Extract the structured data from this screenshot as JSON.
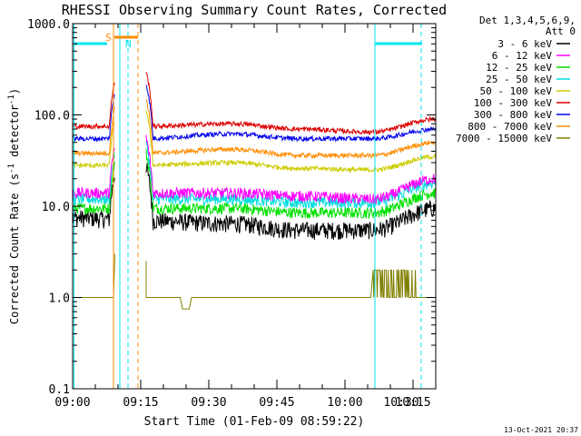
{
  "chart_data": {
    "type": "line",
    "title": "RHESSI Observing Summary Count Rates, Corrected",
    "xlabel": "Start Time (01-Feb-09 08:59:22)",
    "ylabel_main": "Corrected Count Rate (s",
    "ylabel_sup1": "-1",
    "ylabel_mid": " detector",
    "ylabel_sup2": "-1",
    "ylabel_end": ")",
    "yscale": "log",
    "ylim": [
      0.1,
      1000
    ],
    "xlim_minutes": [
      0,
      80
    ],
    "x_ticks": [
      {
        "label": "09:00",
        "minute": 0
      },
      {
        "label": "09:15",
        "minute": 15
      },
      {
        "label": "09:30",
        "minute": 30
      },
      {
        "label": "09:45",
        "minute": 45
      },
      {
        "label": "10:00",
        "minute": 60
      },
      {
        "label": "10:15",
        "minute": 75
      },
      {
        "label": "10:30",
        "minute": 90
      }
    ],
    "y_ticks": [
      {
        "label": "1000.0",
        "value": 1000
      },
      {
        "label": "100.0",
        "value": 100
      },
      {
        "label": "10.0",
        "value": 10
      },
      {
        "label": "1.0",
        "value": 1
      },
      {
        "label": "0.1",
        "value": 0.1
      }
    ],
    "legend_header_1": "Det 1,3,4,5,6,9,",
    "legend_header_2": "Att 0",
    "legend_position": "right",
    "footer_date": "13-Oct-2021 20:37",
    "annotations": [
      {
        "label": "S",
        "color": "#ff8c00"
      },
      {
        "label": "N",
        "color": "#00e5ee"
      }
    ],
    "series": [
      {
        "name": "3 - 6 keV",
        "color": "#000000",
        "levels": [
          7.5,
          7.0,
          6.5,
          5.5,
          5.5,
          9.5
        ]
      },
      {
        "name": "6 - 12 keV",
        "color": "#ff00ff",
        "levels": [
          14,
          14,
          14,
          13,
          12,
          20
        ]
      },
      {
        "name": "12 - 25 keV",
        "color": "#00e000",
        "levels": [
          9.5,
          9.5,
          9.5,
          8.5,
          8.5,
          14
        ]
      },
      {
        "name": "25 - 50 keV",
        "color": "#00dddd",
        "levels": [
          12,
          12,
          12,
          11,
          11,
          18
        ]
      },
      {
        "name": "50 - 100 keV",
        "color": "#cccc00",
        "levels": [
          28,
          28,
          30,
          26,
          25,
          35
        ]
      },
      {
        "name": "100 - 300 keV",
        "color": "#dd0000",
        "levels": [
          75,
          75,
          80,
          70,
          65,
          90
        ]
      },
      {
        "name": "300 - 800 keV",
        "color": "#0000ee",
        "levels": [
          55,
          55,
          62,
          55,
          55,
          70
        ]
      },
      {
        "name": "800 - 7000 keV",
        "color": "#ff8c00",
        "levels": [
          38,
          38,
          42,
          36,
          36,
          50
        ]
      },
      {
        "name": "7000 - 15000 keV",
        "color": "#808000",
        "levels": [
          1.0,
          1.0,
          1.0,
          1.0,
          1.0,
          2.0
        ]
      }
    ]
  }
}
